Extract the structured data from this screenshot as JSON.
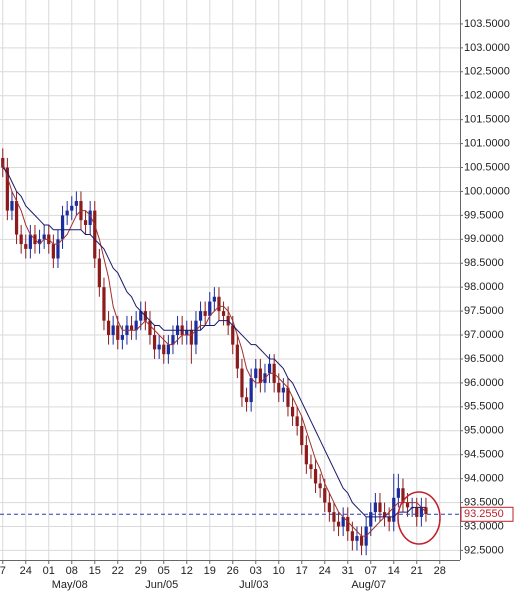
{
  "chart_data": {
    "type": "candlestick",
    "x": [
      0,
      1,
      2,
      3,
      4,
      5,
      6,
      7,
      8,
      9,
      10,
      11,
      12,
      13,
      14,
      15,
      16,
      17,
      18,
      19,
      20,
      21,
      22,
      23,
      24,
      25,
      26,
      27,
      28,
      29,
      30,
      31,
      32,
      33,
      34,
      35,
      36,
      37,
      38,
      39,
      40,
      41,
      42,
      43,
      44,
      45,
      46,
      47,
      48,
      49,
      50,
      51,
      52,
      53,
      54,
      55,
      56,
      57,
      58,
      59,
      60,
      61,
      62,
      63,
      64,
      65,
      66,
      67,
      68,
      69,
      70,
      71,
      72,
      73,
      74,
      75,
      76,
      77,
      78,
      79,
      80,
      81,
      82,
      83,
      84,
      85,
      86,
      87,
      88,
      89,
      90,
      91,
      92
    ],
    "open": [
      100.7,
      100.5,
      99.6,
      99.8,
      99.1,
      98.9,
      98.8,
      99.1,
      98.9,
      99.0,
      99.1,
      98.9,
      98.6,
      99.0,
      99.5,
      99.6,
      99.7,
      99.8,
      99.4,
      99.3,
      99.6,
      98.6,
      98.0,
      97.3,
      97.0,
      97.2,
      96.9,
      97.0,
      97.2,
      97.1,
      97.3,
      97.5,
      97.3,
      97.0,
      96.7,
      96.8,
      96.6,
      96.8,
      97.0,
      97.2,
      97.0,
      97.1,
      96.8,
      97.3,
      97.5,
      97.4,
      97.7,
      97.8,
      97.5,
      97.4,
      97.2,
      96.8,
      96.3,
      95.7,
      95.6,
      96.1,
      96.3,
      96.0,
      96.2,
      96.4,
      96.0,
      95.8,
      95.9,
      95.5,
      95.3,
      95.1,
      94.7,
      94.3,
      94.2,
      93.9,
      93.8,
      93.5,
      93.3,
      93.1,
      93.0,
      93.2,
      92.9,
      92.7,
      92.8,
      92.6,
      93.0,
      93.3,
      93.5,
      93.3,
      93.2,
      93.1,
      93.6,
      93.8,
      93.5,
      93.4,
      93.4,
      93.2,
      93.4
    ],
    "high": [
      100.9,
      100.7,
      100.0,
      100.0,
      99.3,
      99.1,
      99.3,
      99.3,
      99.2,
      99.3,
      99.3,
      99.1,
      99.2,
      99.7,
      99.8,
      99.9,
      100.0,
      100.0,
      99.6,
      99.8,
      99.8,
      98.8,
      98.2,
      97.5,
      97.4,
      97.4,
      97.2,
      97.4,
      97.4,
      97.5,
      97.7,
      97.7,
      97.5,
      97.2,
      97.0,
      97.0,
      97.0,
      97.2,
      97.4,
      97.4,
      97.3,
      97.3,
      97.5,
      97.7,
      97.7,
      97.9,
      98.0,
      98.0,
      97.7,
      97.6,
      97.4,
      97.0,
      96.5,
      95.9,
      96.3,
      96.5,
      96.5,
      96.4,
      96.6,
      96.6,
      96.2,
      96.1,
      96.1,
      95.7,
      95.5,
      95.3,
      94.9,
      94.5,
      94.4,
      94.1,
      94.0,
      93.7,
      93.5,
      93.3,
      93.4,
      93.4,
      93.1,
      93.0,
      93.0,
      93.2,
      93.5,
      93.7,
      93.7,
      93.5,
      93.4,
      94.1,
      94.1,
      94.0,
      93.7,
      93.6,
      93.6,
      93.6,
      93.6
    ],
    "low": [
      100.3,
      99.4,
      99.4,
      98.9,
      98.7,
      98.6,
      98.6,
      98.7,
      98.7,
      98.8,
      98.7,
      98.4,
      98.4,
      98.8,
      99.3,
      99.4,
      99.5,
      99.2,
      99.1,
      99.1,
      98.4,
      97.8,
      97.1,
      96.8,
      96.8,
      96.7,
      96.7,
      96.8,
      96.9,
      96.9,
      97.1,
      97.1,
      96.8,
      96.5,
      96.5,
      96.4,
      96.4,
      96.6,
      96.8,
      96.8,
      96.8,
      96.4,
      96.6,
      97.1,
      97.2,
      97.2,
      97.5,
      97.3,
      97.2,
      97.0,
      96.6,
      96.1,
      95.5,
      95.4,
      95.4,
      95.9,
      95.8,
      95.8,
      96.0,
      95.8,
      95.6,
      95.6,
      95.3,
      95.1,
      94.9,
      94.5,
      94.1,
      94.0,
      93.7,
      93.6,
      93.3,
      93.1,
      92.9,
      92.8,
      92.8,
      92.7,
      92.5,
      92.5,
      92.4,
      92.4,
      92.8,
      93.1,
      93.1,
      93.0,
      92.9,
      92.9,
      93.4,
      93.3,
      93.2,
      93.2,
      93.0,
      93.0,
      93.1
    ],
    "close": [
      100.5,
      99.6,
      99.8,
      99.1,
      98.9,
      98.8,
      99.1,
      98.9,
      99.0,
      99.1,
      98.9,
      98.6,
      99.0,
      99.5,
      99.6,
      99.7,
      99.8,
      99.4,
      99.3,
      99.6,
      98.6,
      98.0,
      97.3,
      97.0,
      97.2,
      96.9,
      97.0,
      97.2,
      97.1,
      97.3,
      97.5,
      97.3,
      97.0,
      96.7,
      96.8,
      96.6,
      96.8,
      97.0,
      97.2,
      97.0,
      97.1,
      96.8,
      97.3,
      97.5,
      97.4,
      97.7,
      97.8,
      97.5,
      97.4,
      97.2,
      96.8,
      96.3,
      95.7,
      95.6,
      96.1,
      96.3,
      96.0,
      96.2,
      96.4,
      96.0,
      95.8,
      95.9,
      95.5,
      95.3,
      95.1,
      94.7,
      94.3,
      94.2,
      93.9,
      93.8,
      93.5,
      93.3,
      93.1,
      93.0,
      93.2,
      92.9,
      92.7,
      92.8,
      92.6,
      93.0,
      93.3,
      93.5,
      93.3,
      93.2,
      93.1,
      93.6,
      93.8,
      93.5,
      93.4,
      93.4,
      93.2,
      93.4,
      93.26
    ],
    "up_color": "#1c2c9c",
    "down_color": "#8c1c1c",
    "lines": [
      {
        "color": "#a03030",
        "values": [
          100.6,
          100.3,
          100.0,
          99.8,
          99.6,
          99.3,
          99.1,
          99.0,
          98.9,
          99.0,
          99.0,
          98.9,
          98.9,
          99.0,
          99.1,
          99.3,
          99.5,
          99.6,
          99.6,
          99.5,
          99.3,
          99.0,
          98.6,
          98.2,
          97.6,
          97.3,
          97.1,
          97.1,
          97.1,
          97.1,
          97.2,
          97.3,
          97.2,
          97.1,
          97.0,
          96.9,
          96.8,
          96.8,
          96.9,
          97.0,
          97.0,
          97.0,
          97.1,
          97.2,
          97.2,
          97.4,
          97.5,
          97.6,
          97.6,
          97.5,
          97.3,
          97.0,
          96.7,
          96.3,
          96.1,
          96.0,
          96.0,
          96.1,
          96.2,
          96.2,
          96.1,
          96.0,
          95.9,
          95.7,
          95.5,
          95.3,
          95.0,
          94.7,
          94.4,
          94.2,
          93.9,
          93.7,
          93.5,
          93.3,
          93.2,
          93.1,
          93.0,
          92.9,
          92.8,
          92.8,
          92.9,
          93.0,
          93.1,
          93.2,
          93.3,
          93.4,
          93.5,
          93.5,
          93.5,
          93.5,
          93.5,
          93.4,
          93.3
        ]
      },
      {
        "color": "#1a1a6e",
        "values": [
          100.5,
          100.4,
          100.2,
          100.0,
          99.9,
          99.7,
          99.6,
          99.5,
          99.4,
          99.3,
          99.3,
          99.2,
          99.2,
          99.2,
          99.2,
          99.2,
          99.2,
          99.2,
          99.1,
          99.1,
          99.0,
          98.9,
          98.8,
          98.6,
          98.4,
          98.3,
          98.1,
          97.9,
          97.8,
          97.6,
          97.5,
          97.4,
          97.3,
          97.2,
          97.2,
          97.1,
          97.1,
          97.1,
          97.1,
          97.1,
          97.1,
          97.1,
          97.1,
          97.1,
          97.2,
          97.2,
          97.2,
          97.3,
          97.3,
          97.3,
          97.2,
          97.1,
          97.0,
          96.9,
          96.8,
          96.8,
          96.7,
          96.6,
          96.5,
          96.5,
          96.4,
          96.3,
          96.1,
          96.0,
          95.8,
          95.6,
          95.4,
          95.2,
          95.0,
          94.8,
          94.6,
          94.4,
          94.2,
          94.0,
          93.8,
          93.7,
          93.5,
          93.4,
          93.3,
          93.2,
          93.2,
          93.2,
          93.2,
          93.2,
          93.2,
          93.2,
          93.3,
          93.3,
          93.3,
          93.4,
          93.4,
          93.4,
          93.4
        ]
      }
    ],
    "xlim": [
      -0.6,
      99.4
    ],
    "xticks": [
      {
        "value": 0,
        "label": "7"
      },
      {
        "value": 5,
        "label": "24"
      },
      {
        "value": 10,
        "label": "01"
      },
      {
        "value": 15,
        "label": "08"
      },
      {
        "value": 20,
        "label": "15"
      },
      {
        "value": 25,
        "label": "22"
      },
      {
        "value": 30,
        "label": "29"
      },
      {
        "value": 35,
        "label": "05"
      },
      {
        "value": 40,
        "label": "12"
      },
      {
        "value": 45,
        "label": "19"
      },
      {
        "value": 50,
        "label": "26"
      },
      {
        "value": 55,
        "label": "03"
      },
      {
        "value": 60,
        "label": "10"
      },
      {
        "value": 65,
        "label": "17"
      },
      {
        "value": 70,
        "label": "24"
      },
      {
        "value": 75,
        "label": "31"
      },
      {
        "value": 80,
        "label": "07"
      },
      {
        "value": 85,
        "label": "14"
      },
      {
        "value": 90,
        "label": "21"
      },
      {
        "value": 95,
        "label": "28"
      }
    ],
    "month_ticks": [
      {
        "value": 15,
        "label": "May/08"
      },
      {
        "value": 35,
        "label": "Jun/05"
      },
      {
        "value": 55,
        "label": "Jul/03"
      },
      {
        "value": 80,
        "label": "Aug/07"
      }
    ],
    "ylim": [
      92.3,
      104.0
    ],
    "yticks": [
      {
        "value": 92.5,
        "label": "92.5000"
      },
      {
        "value": 93,
        "label": "93.0000"
      },
      {
        "value": 93.5,
        "label": "93.5000"
      },
      {
        "value": 94,
        "label": "94.0000"
      },
      {
        "value": 94.5,
        "label": "94.5000"
      },
      {
        "value": 95,
        "label": "95.0000"
      },
      {
        "value": 95.5,
        "label": "95.5000"
      },
      {
        "value": 96,
        "label": "96.0000"
      },
      {
        "value": 96.5,
        "label": "96.5000"
      },
      {
        "value": 97,
        "label": "97.0000"
      },
      {
        "value": 97.5,
        "label": "97.5000"
      },
      {
        "value": 98,
        "label": "98.0000"
      },
      {
        "value": 98.5,
        "label": "98.5000"
      },
      {
        "value": 99,
        "label": "99.0000"
      },
      {
        "value": 99.5,
        "label": "99.5000"
      },
      {
        "value": 100,
        "label": "100.0000"
      },
      {
        "value": 100.5,
        "label": "100.5000"
      },
      {
        "value": 101,
        "label": "101.0000"
      },
      {
        "value": 101.5,
        "label": "101.5000"
      },
      {
        "value": 102,
        "label": "102.0000"
      },
      {
        "value": 102.5,
        "label": "102.5000"
      },
      {
        "value": 103,
        "label": "103.0000"
      },
      {
        "value": 103.5,
        "label": "103.5000"
      }
    ],
    "grid": true,
    "last_price": {
      "value": 93.255,
      "label": "93.2550"
    },
    "last_price_color": "#c0202a"
  }
}
